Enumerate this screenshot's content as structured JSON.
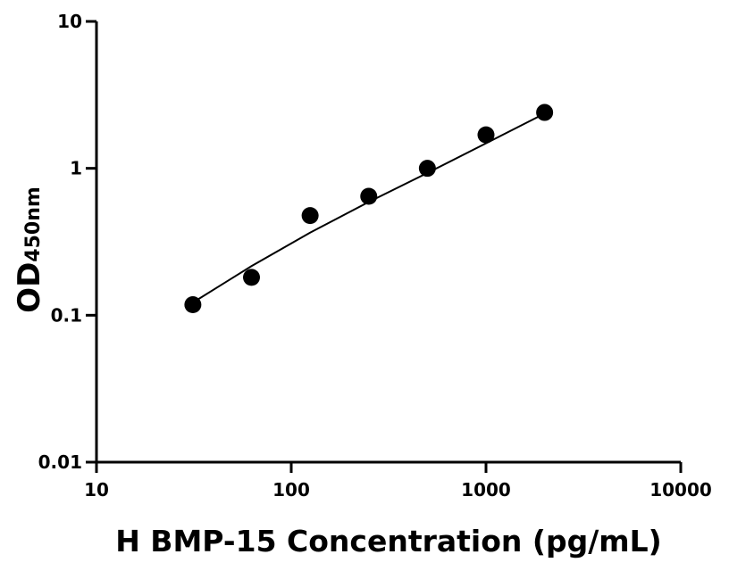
{
  "chart_data": {
    "type": "scatter",
    "xlabel": "H BMP-15 Concentration (pg/mL)",
    "ylabel": "OD",
    "ylabel_subscript": "450nm",
    "x_scale": "log",
    "y_scale": "log",
    "xlim": [
      10,
      10000
    ],
    "ylim": [
      0.01,
      10
    ],
    "x_ticks": [
      {
        "value": 10,
        "label": "10"
      },
      {
        "value": 100,
        "label": "100"
      },
      {
        "value": 1000,
        "label": "1000"
      },
      {
        "value": 10000,
        "label": "10000"
      }
    ],
    "y_ticks": [
      {
        "value": 0.01,
        "label": "0.01"
      },
      {
        "value": 0.1,
        "label": "0.1"
      },
      {
        "value": 1,
        "label": "1"
      },
      {
        "value": 10,
        "label": "10"
      }
    ],
    "grid": false,
    "marker_color": "#000000",
    "series": [
      {
        "points": [
          {
            "x": 31.25,
            "y": 0.118
          },
          {
            "x": 62.5,
            "y": 0.181
          },
          {
            "x": 125,
            "y": 0.477
          },
          {
            "x": 250,
            "y": 0.645
          },
          {
            "x": 500,
            "y": 1.0
          },
          {
            "x": 1000,
            "y": 1.69
          },
          {
            "x": 2000,
            "y": 2.4
          }
        ],
        "fit_curve": {
          "type": "power-law",
          "x": [
            31.25,
            62.5,
            125,
            250,
            500,
            1000,
            2000
          ],
          "y": [
            0.122,
            0.216,
            0.365,
            0.59,
            0.93,
            1.48,
            2.36
          ]
        }
      }
    ]
  }
}
